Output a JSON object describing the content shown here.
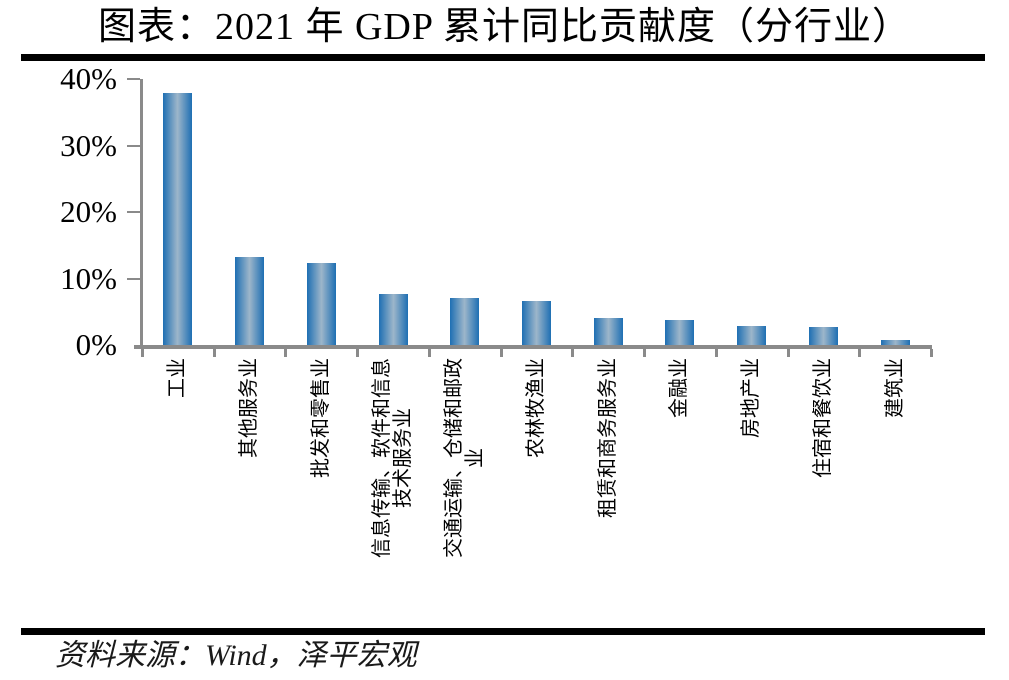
{
  "header": {
    "title": "图表：2021 年 GDP 累计同比贡献度（分行业）"
  },
  "footer": {
    "source": "资料来源：Wind，泽平宏观"
  },
  "chart_data": {
    "type": "bar",
    "title": "图表：2021 年 GDP 累计同比贡献度（分行业）",
    "categories": [
      "工业",
      "其他服务业",
      "批发和零售业",
      "信息传输、软件和信息\n技术服务业",
      "交通运输、仓储和邮政\n业",
      "农林牧渔业",
      "租赁和商务服务业",
      "金融业",
      "房地产业",
      "住宿和餐饮业",
      "建筑业"
    ],
    "values": [
      37.9,
      13.3,
      12.4,
      7.7,
      7.1,
      6.6,
      4.1,
      3.8,
      2.9,
      2.7,
      0.7
    ],
    "unit": "%",
    "xlabel": "",
    "ylabel": "",
    "ylim": [
      0,
      40
    ],
    "yticks": [
      "40%",
      "30%",
      "20%",
      "10%",
      "0%"
    ],
    "ytick_values": [
      40,
      30,
      20,
      10,
      0
    ],
    "grid": false,
    "legend": null,
    "bar_color_edge": "#1e6fb3",
    "bar_color_center": "#9db6ca",
    "axis_color": "#8a8a8a",
    "source_note": "资料来源：Wind，泽平宏观"
  }
}
